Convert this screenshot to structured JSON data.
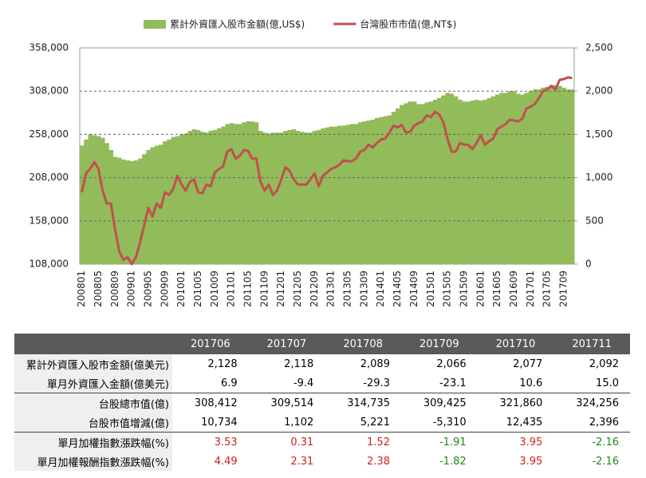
{
  "chart_data": {
    "type": "bar-line",
    "categories": [
      "200801",
      null,
      null,
      null,
      "200805",
      null,
      null,
      null,
      "200809",
      null,
      null,
      null,
      "200901",
      null,
      null,
      null,
      "200905",
      null,
      null,
      null,
      "200909",
      null,
      null,
      null,
      "201001",
      null,
      null,
      null,
      "201005",
      null,
      null,
      null,
      "201009",
      null,
      null,
      null,
      "201101",
      null,
      null,
      null,
      "201105",
      null,
      null,
      null,
      "201109",
      null,
      null,
      null,
      "201201",
      null,
      null,
      null,
      "201205",
      null,
      null,
      null,
      "201209",
      null,
      null,
      null,
      "201301",
      null,
      null,
      null,
      "201305",
      null,
      null,
      null,
      "201309",
      null,
      null,
      null,
      "201401",
      null,
      null,
      null,
      "201405",
      null,
      null,
      null,
      "201409",
      null,
      null,
      null,
      "201501",
      null,
      null,
      null,
      "201505",
      null,
      null,
      null,
      "201509",
      null,
      null,
      null,
      "201601",
      null,
      null,
      null,
      "201605",
      null,
      null,
      null,
      "201609",
      null,
      null,
      null,
      "201701",
      null,
      null,
      null,
      "201705",
      null,
      null,
      null,
      "201709",
      null,
      null
    ],
    "series": [
      {
        "name": "累計外資匯入股市金額(億,US$)",
        "color": "#92bb5a",
        "kind": "bar",
        "axis": "y",
        "values": [
          245000,
          252000,
          258000,
          257000,
          256000,
          254000,
          248000,
          240000,
          232000,
          231000,
          229000,
          228000,
          227000,
          228000,
          230000,
          235000,
          240000,
          243000,
          245000,
          246000,
          250000,
          252000,
          255000,
          256000,
          258000,
          259000,
          262000,
          264000,
          263000,
          261000,
          260000,
          262000,
          263000,
          265000,
          267000,
          270000,
          271000,
          270000,
          270000,
          272000,
          273000,
          273000,
          272000,
          262000,
          260000,
          259000,
          260000,
          260000,
          260000,
          262000,
          263000,
          264000,
          262000,
          261000,
          260000,
          260000,
          262000,
          263000,
          265000,
          266000,
          267000,
          267000,
          268000,
          268000,
          269000,
          270000,
          270000,
          272000,
          273000,
          274000,
          275000,
          277000,
          278000,
          279000,
          280000,
          284000,
          288000,
          292000,
          294000,
          296000,
          296000,
          293000,
          293000,
          295000,
          296000,
          298000,
          300000,
          303000,
          306000,
          305000,
          302000,
          298000,
          296000,
          296000,
          297000,
          298000,
          297000,
          298000,
          300000,
          302000,
          304000,
          306000,
          306000,
          308000,
          308000,
          305000,
          304000,
          306000,
          308000,
          310000,
          310000,
          312000,
          313000,
          315000,
          315000,
          314000,
          312000,
          310000,
          310000
        ]
      },
      {
        "name": "台灣股市市值(億,NT$)",
        "color": "#c0504d",
        "kind": "line",
        "axis": "y2",
        "values": [
          830,
          1050,
          1100,
          1180,
          1100,
          850,
          700,
          700,
          400,
          150,
          50,
          80,
          0,
          80,
          250,
          450,
          650,
          550,
          700,
          650,
          830,
          800,
          870,
          1020,
          920,
          850,
          950,
          980,
          830,
          820,
          920,
          900,
          1060,
          1100,
          1130,
          1300,
          1330,
          1220,
          1250,
          1320,
          1310,
          1220,
          1220,
          950,
          850,
          920,
          800,
          850,
          980,
          1120,
          1080,
          980,
          920,
          920,
          920,
          980,
          1050,
          900,
          1020,
          1060,
          1100,
          1120,
          1150,
          1200,
          1190,
          1190,
          1220,
          1300,
          1320,
          1380,
          1350,
          1400,
          1440,
          1450,
          1520,
          1600,
          1580,
          1610,
          1520,
          1530,
          1600,
          1630,
          1650,
          1720,
          1700,
          1760,
          1730,
          1640,
          1450,
          1300,
          1300,
          1400,
          1380,
          1380,
          1330,
          1400,
          1490,
          1380,
          1420,
          1450,
          1560,
          1590,
          1620,
          1670,
          1660,
          1650,
          1680,
          1800,
          1820,
          1850,
          1920,
          2000,
          2020,
          2060,
          2020,
          2130,
          2140,
          2160,
          2150
        ]
      }
    ],
    "ylim": [
      108000,
      358000
    ],
    "yticks": [
      {
        "value": 108000,
        "label": "108,000"
      },
      {
        "value": 158000,
        "label": "158,000"
      },
      {
        "value": 208000,
        "label": "208,000"
      },
      {
        "value": 258000,
        "label": "258,000"
      },
      {
        "value": 308000,
        "label": "308,000"
      },
      {
        "value": 358000,
        "label": "358,000"
      }
    ],
    "y2lim": [
      0,
      2500
    ],
    "y2ticks": [
      0,
      500,
      {
        "value": 1000,
        "label": "1,000"
      },
      {
        "value": 1500,
        "label": "1,500"
      },
      {
        "value": 2000,
        "label": "2,000"
      },
      {
        "value": 2500,
        "label": "2,500"
      }
    ],
    "grid": true,
    "legend": "top"
  },
  "table": {
    "columns": [
      "201706",
      "201707",
      "201708",
      "201709",
      "201710",
      "201711"
    ],
    "rows": [
      [
        "累計外資匯入股市金額(億美元)",
        "2,128",
        "2,118",
        "2,089",
        "2,066",
        "2,077",
        "2,092"
      ],
      [
        "單月外資匯入金額(億美元)",
        "6.9",
        "-9.4",
        "-29.3",
        "-23.1",
        "10.6",
        "15.0"
      ],
      [
        "台股總市值(億)",
        "308,412",
        "309,514",
        "314,735",
        "309,425",
        "321,860",
        "324,256"
      ],
      [
        "台股市值增減(億)",
        "10,734",
        "1,102",
        "5,221",
        "-5,310",
        "12,435",
        "2,396"
      ],
      [
        "單月加權指數漲跌幅(%)",
        "3.53",
        "0.31",
        "1.52",
        "-1.91",
        "3.95",
        "-2.16"
      ],
      [
        "單月加權報酬指數漲跌幅(%)",
        "4.49",
        "2.31",
        "2.38",
        "-1.82",
        "3.95",
        "-2.16"
      ]
    ],
    "colored_rows": [
      4,
      5
    ]
  }
}
